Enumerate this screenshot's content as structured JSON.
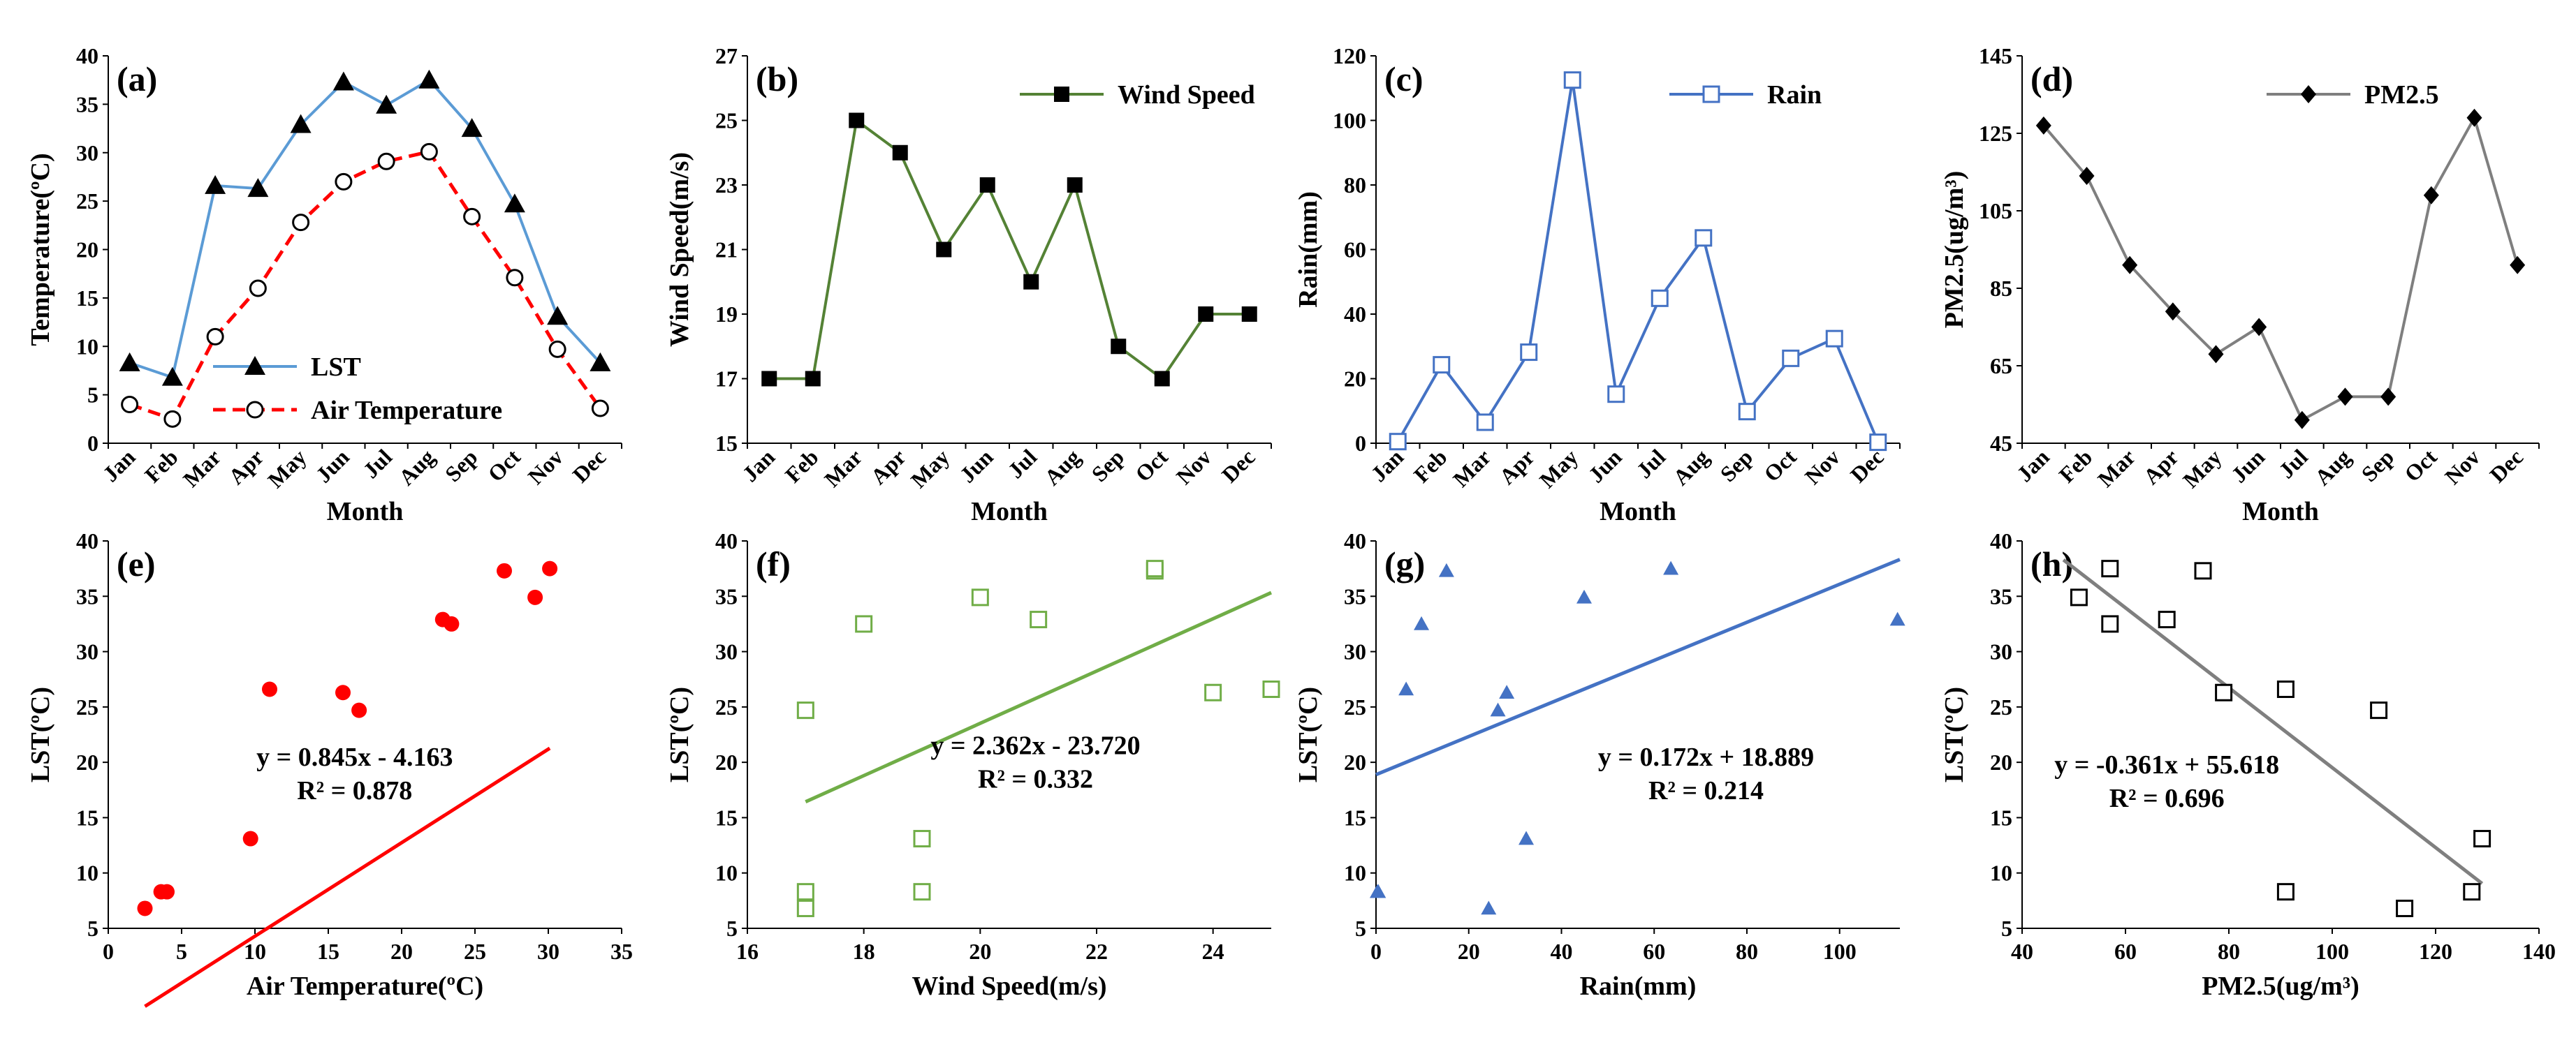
{
  "chart_data": [
    {
      "panel": "(a)",
      "type": "line",
      "title": "",
      "xlabel": "Month",
      "ylabel": "Temperature(ºC)",
      "ylim": [
        0,
        40
      ],
      "yticks": [
        0,
        5,
        10,
        15,
        20,
        25,
        30,
        35,
        40
      ],
      "categories": [
        "Jan",
        "Feb",
        "Mar",
        "Apr",
        "May",
        "Jun",
        "Jul",
        "Aug",
        "Sep",
        "Oct",
        "Nov",
        "Dec"
      ],
      "legend_position": "bottom-left",
      "series": [
        {
          "name": "LST",
          "color": "#5b9bd5",
          "marker": "triangle",
          "dash": false,
          "values": [
            8.3,
            6.8,
            26.6,
            26.3,
            32.9,
            37.3,
            34.9,
            37.5,
            32.5,
            24.7,
            13.1,
            8.3
          ]
        },
        {
          "name": "Air Temperature",
          "color": "#ff0000",
          "marker": "open-circle",
          "dash": true,
          "values": [
            4.0,
            2.5,
            11.0,
            16.0,
            22.8,
            27.0,
            29.1,
            30.1,
            23.4,
            17.1,
            9.7,
            3.6
          ]
        }
      ]
    },
    {
      "panel": "(b)",
      "type": "line",
      "title": "",
      "xlabel": "Month",
      "ylabel": "Wind Speed(m/s)",
      "ylim": [
        15,
        27
      ],
      "yticks": [
        15,
        17,
        19,
        21,
        23,
        25,
        27
      ],
      "categories": [
        "Jan",
        "Feb",
        "Mar",
        "Apr",
        "May",
        "Jun",
        "Jul",
        "Aug",
        "Sep",
        "Oct",
        "Nov",
        "Dec"
      ],
      "legend_position": "top-right",
      "series": [
        {
          "name": "Wind Speed",
          "color": "#548235",
          "marker": "filled-square",
          "dash": false,
          "values": [
            17,
            17,
            25,
            24,
            21,
            23,
            20,
            23,
            18,
            17,
            19,
            19
          ]
        }
      ]
    },
    {
      "panel": "(c)",
      "type": "line",
      "title": "",
      "xlabel": "Month",
      "ylabel": "Rain(mm)",
      "ylim": [
        0,
        120
      ],
      "yticks": [
        0,
        20,
        40,
        60,
        80,
        100,
        120
      ],
      "categories": [
        "Jan",
        "Feb",
        "Mar",
        "Apr",
        "May",
        "Jun",
        "Jul",
        "Aug",
        "Sep",
        "Oct",
        "Nov",
        "Dec"
      ],
      "legend_position": "top-right",
      "series": [
        {
          "name": "Rain",
          "color": "#4472c4",
          "marker": "open-square",
          "dash": false,
          "values": [
            0.5,
            24.3,
            6.5,
            28.2,
            112.5,
            15.2,
            44.9,
            63.6,
            9.8,
            26.3,
            32.4,
            0.3
          ]
        }
      ]
    },
    {
      "panel": "(d)",
      "type": "line",
      "title": "",
      "xlabel": "Month",
      "ylabel": "PM2.5(ug/m³)",
      "ylim": [
        45,
        145
      ],
      "yticks": [
        45,
        65,
        85,
        105,
        125,
        145
      ],
      "categories": [
        "Jan",
        "Feb",
        "Mar",
        "Apr",
        "May",
        "Jun",
        "Jul",
        "Aug",
        "Sep",
        "Oct",
        "Nov",
        "Dec"
      ],
      "legend_position": "top-right",
      "series": [
        {
          "name": "PM2.5",
          "color": "#7f7f7f",
          "marker": "filled-diamond",
          "dash": false,
          "values": [
            127,
            114,
            91,
            79,
            68,
            75,
            51,
            57,
            57,
            109,
            129,
            91
          ]
        }
      ]
    },
    {
      "panel": "(e)",
      "type": "scatter",
      "title": "",
      "xlabel": "Air Temperature(ºC)",
      "ylabel": "LST(ºC)",
      "xlim": [
        0,
        35
      ],
      "xticks": [
        0,
        5,
        10,
        15,
        20,
        25,
        30,
        35
      ],
      "ylim": [
        5,
        40
      ],
      "yticks": [
        5,
        10,
        15,
        20,
        25,
        30,
        35,
        40
      ],
      "color": "#ff0000",
      "marker": "filled-circle",
      "x": [
        4.0,
        2.5,
        11.0,
        16.0,
        22.8,
        27.0,
        29.1,
        30.1,
        23.4,
        17.1,
        9.7,
        3.6
      ],
      "y": [
        8.3,
        6.8,
        26.6,
        26.3,
        32.9,
        37.3,
        34.9,
        37.5,
        32.5,
        24.7,
        13.1,
        8.3
      ],
      "trendline": {
        "slope": 0.845,
        "intercept": -4.163,
        "xrange": [
          2.5,
          30.1
        ]
      },
      "equation": "y = 0.845x - 4.163",
      "r2": "R² = 0.878"
    },
    {
      "panel": "(f)",
      "type": "scatter",
      "title": "",
      "xlabel": "Wind Speed(m/s)",
      "ylabel": "LST(ºC)",
      "xlim": [
        16,
        25
      ],
      "xticks": [
        16,
        18,
        20,
        22,
        24
      ],
      "ylim": [
        5,
        40
      ],
      "yticks": [
        5,
        10,
        15,
        20,
        25,
        30,
        35,
        40
      ],
      "color": "#70ad47",
      "marker": "open-square",
      "x": [
        17,
        17,
        25,
        24,
        21,
        23,
        20,
        23,
        18,
        17,
        19,
        19
      ],
      "y": [
        8.3,
        6.8,
        26.6,
        26.3,
        32.9,
        37.3,
        34.9,
        37.5,
        32.5,
        24.7,
        13.1,
        8.3
      ],
      "trendline": {
        "slope": 2.362,
        "intercept": -23.72,
        "xrange": [
          17,
          25
        ]
      },
      "equation": "y = 2.362x - 23.720",
      "r2": "R² = 0.332"
    },
    {
      "panel": "(g)",
      "type": "scatter",
      "title": "",
      "xlabel": "Rain(mm)",
      "ylabel": "LST(ºC)",
      "xlim": [
        0,
        113
      ],
      "xticks": [
        0,
        20,
        40,
        60,
        80,
        100
      ],
      "ylim": [
        5,
        40
      ],
      "yticks": [
        5,
        10,
        15,
        20,
        25,
        30,
        35,
        40
      ],
      "color": "#4472c4",
      "marker": "filled-triangle",
      "x": [
        0.5,
        24.3,
        6.5,
        28.2,
        112.5,
        15.2,
        44.9,
        63.6,
        9.8,
        26.3,
        32.4,
        0.3
      ],
      "y": [
        8.3,
        6.8,
        26.6,
        26.3,
        32.9,
        37.3,
        34.9,
        37.5,
        32.5,
        24.7,
        13.1,
        8.3
      ],
      "trendline": {
        "slope": 0.172,
        "intercept": 18.889,
        "xrange": [
          0,
          113
        ]
      },
      "equation": "y = 0.172x + 18.889",
      "r2": "R² = 0.214"
    },
    {
      "panel": "(h)",
      "type": "scatter",
      "title": "",
      "xlabel": "PM2.5(ug/m³)",
      "ylabel": "LST(ºC)",
      "xlim": [
        40,
        140
      ],
      "xticks": [
        40,
        60,
        80,
        100,
        120,
        140
      ],
      "ylim": [
        5,
        40
      ],
      "yticks": [
        5,
        10,
        15,
        20,
        25,
        30,
        35,
        40
      ],
      "color": "#000000",
      "marker": "open-square",
      "x": [
        127,
        114,
        91,
        79,
        68,
        75,
        51,
        57,
        57,
        109,
        129,
        91
      ],
      "y": [
        8.3,
        6.8,
        26.6,
        26.3,
        32.9,
        37.3,
        34.9,
        37.5,
        32.5,
        24.7,
        13.1,
        8.3
      ],
      "trendline": {
        "slope": -0.361,
        "intercept": 55.618,
        "xrange": [
          48,
          129
        ]
      },
      "trendline_color": "#7f7f7f",
      "equation": "y = -0.361x + 55.618",
      "r2": "R² = 0.696"
    }
  ]
}
